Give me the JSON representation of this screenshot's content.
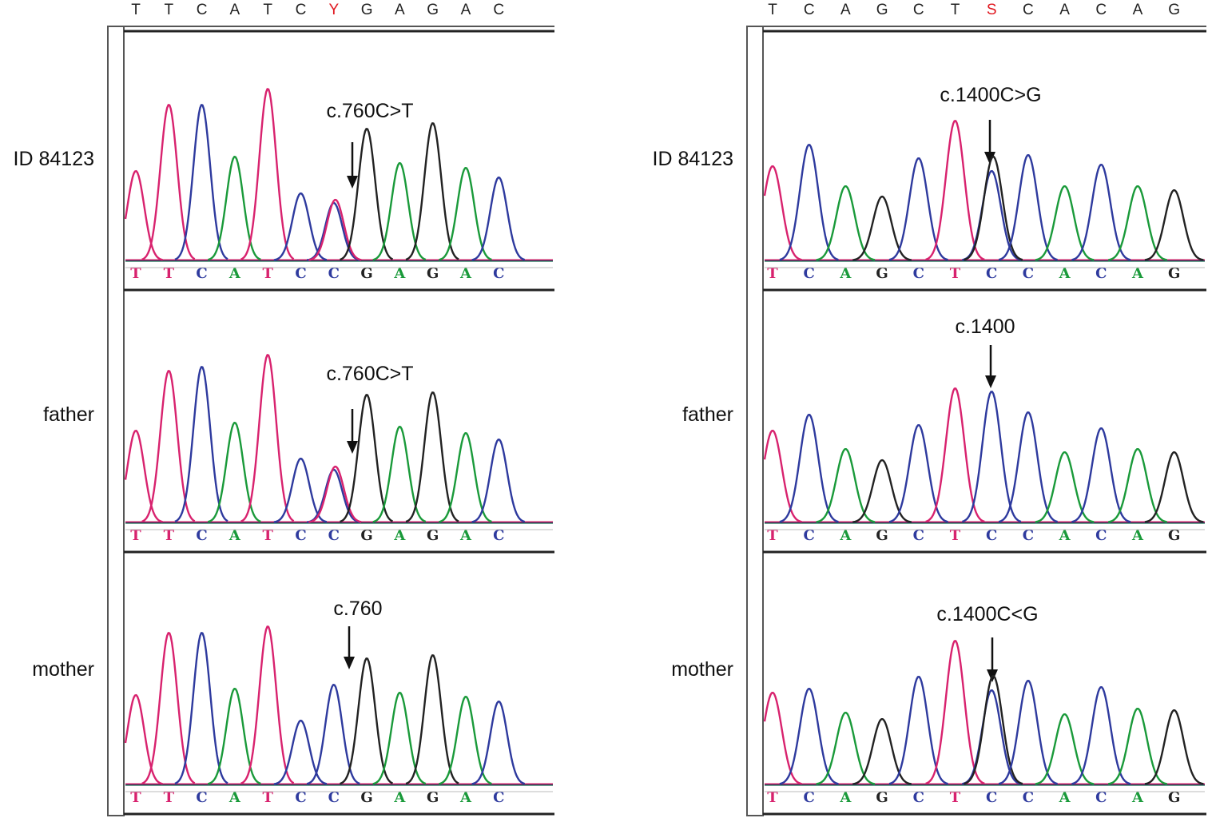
{
  "colors": {
    "A": "#1a9a3a",
    "C": "#2e3a9e",
    "G": "#222222",
    "T": "#d8226e",
    "mixed": "#e0161e"
  },
  "left": {
    "consensus": [
      "T",
      "T",
      "C",
      "A",
      "T",
      "C",
      "Y",
      "G",
      "A",
      "G",
      "A",
      "C"
    ],
    "mixed_index": 6,
    "rows": [
      {
        "label": "ID 84123",
        "annotation": "c.760C>T",
        "bases": [
          "T",
          "T",
          "C",
          "A",
          "T",
          "C",
          "C",
          "G",
          "A",
          "G",
          "A",
          "C"
        ]
      },
      {
        "label": "father",
        "annotation": "c.760C>T",
        "bases": [
          "T",
          "T",
          "C",
          "A",
          "T",
          "C",
          "C",
          "G",
          "A",
          "G",
          "A",
          "C"
        ]
      },
      {
        "label": "mother",
        "annotation": "c.760",
        "bases": [
          "T",
          "T",
          "C",
          "A",
          "T",
          "C",
          "C",
          "G",
          "A",
          "G",
          "A",
          "C"
        ]
      }
    ]
  },
  "right": {
    "consensus": [
      "T",
      "C",
      "A",
      "G",
      "C",
      "T",
      "S",
      "C",
      "A",
      "C",
      "A",
      "G"
    ],
    "mixed_index": 6,
    "rows": [
      {
        "label": "ID 84123",
        "annotation": "c.1400C>G",
        "bases": [
          "T",
          "C",
          "A",
          "G",
          "C",
          "T",
          "C",
          "C",
          "A",
          "C",
          "A",
          "G"
        ]
      },
      {
        "label": "father",
        "annotation": "c.1400",
        "bases": [
          "T",
          "C",
          "A",
          "G",
          "C",
          "T",
          "C",
          "C",
          "A",
          "C",
          "A",
          "G"
        ]
      },
      {
        "label": "mother",
        "annotation": "c.1400C<G",
        "bases": [
          "T",
          "C",
          "A",
          "G",
          "C",
          "T",
          "C",
          "C",
          "A",
          "C",
          "A",
          "G"
        ]
      }
    ]
  }
}
